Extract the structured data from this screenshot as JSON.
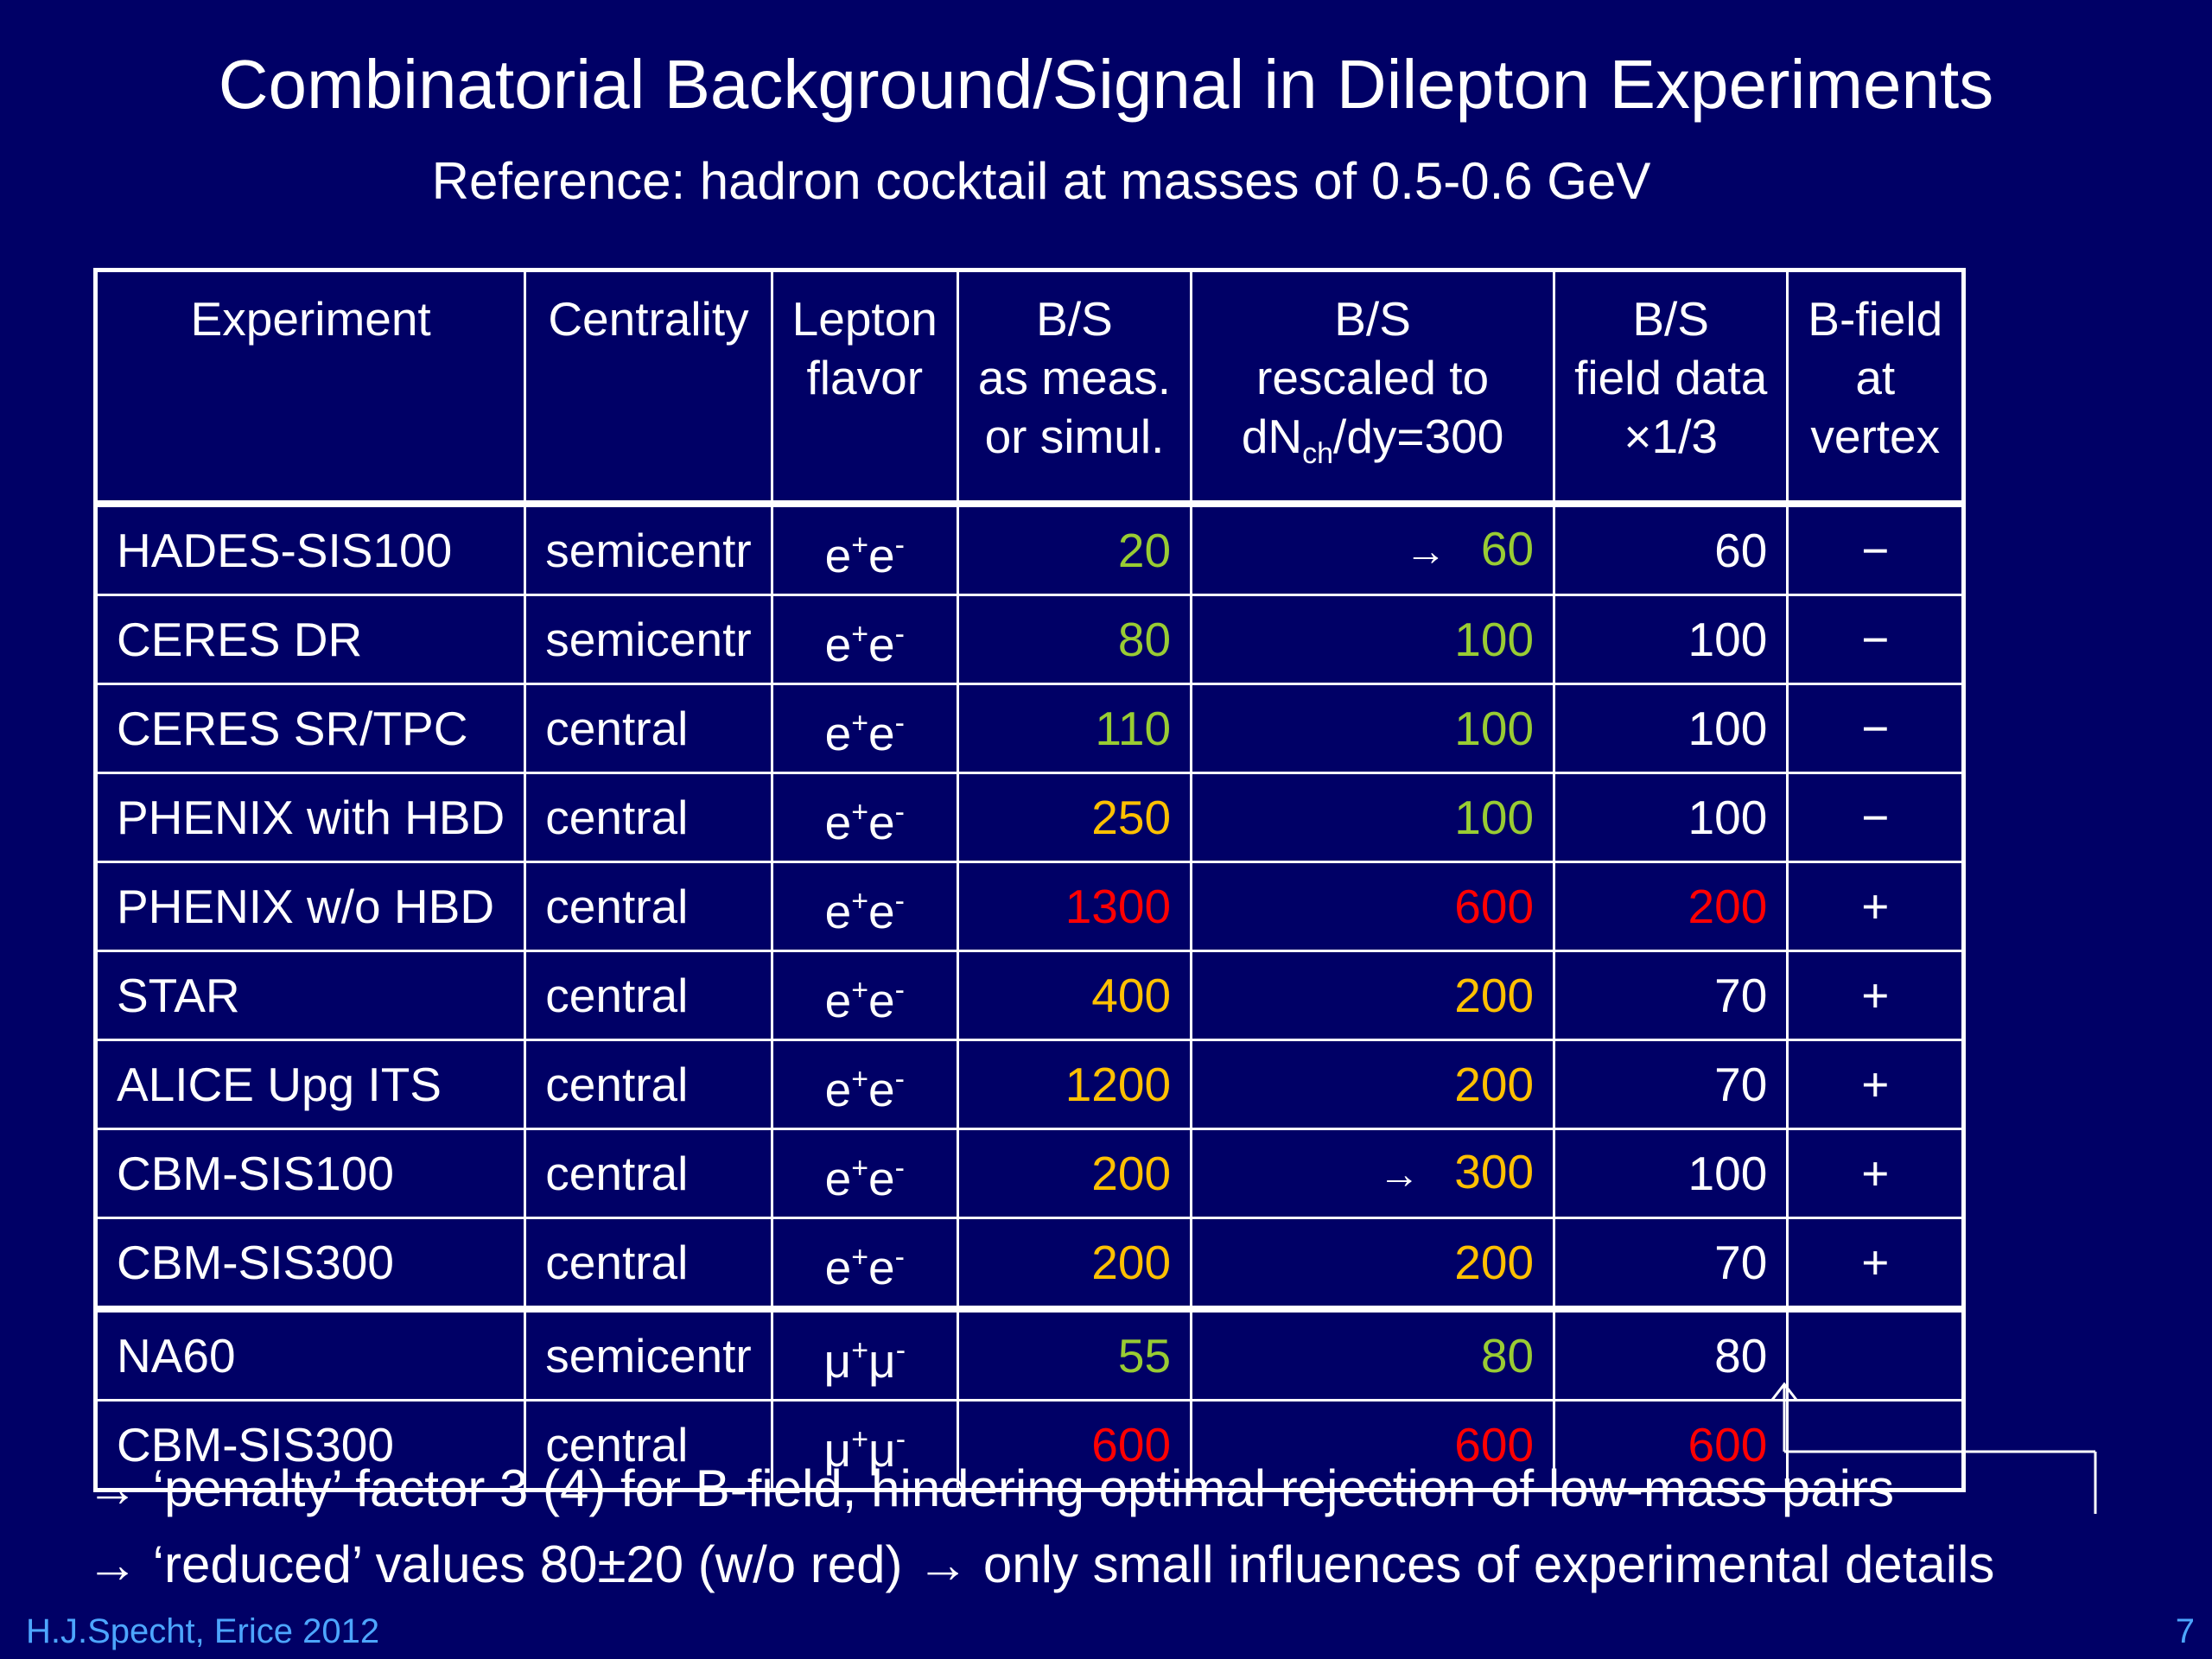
{
  "title": "Combinatorial Background/Signal in Dilepton Experiments",
  "subtitle": "Reference: hadron cocktail at masses of 0.5-0.6 GeV",
  "table": {
    "headers": {
      "experiment": "Experiment",
      "centrality": "Centrality",
      "lepton": [
        "Lepton",
        "flavor"
      ],
      "bs_meas": [
        "B/S",
        "as meas.",
        "or simul."
      ],
      "bs_rescaled": [
        "B/S",
        "rescaled  to",
        "dN",
        "ch",
        "/dy=300"
      ],
      "bs_field": [
        "B/S",
        "field data",
        "×1/3"
      ],
      "bfield": [
        "B-field",
        "at",
        "vertex"
      ]
    },
    "rows": [
      {
        "experiment": "HADES-SIS100",
        "centrality": "semicentr",
        "lepton": "e",
        "sup": "+",
        "lep2": "e",
        "sup2": "-",
        "bs_meas": "20",
        "bs_meas_color": "#99cc33",
        "arrow": true,
        "bs_rescaled": "60",
        "bs_rescaled_color": "#99cc33",
        "bs_field": "60",
        "bs_field_color": "#ffffff",
        "bfield": "−",
        "sep": false
      },
      {
        "experiment": "CERES DR",
        "centrality": "semicentr",
        "lepton": "e",
        "sup": "+",
        "lep2": "e",
        "sup2": "-",
        "bs_meas": "80",
        "bs_meas_color": "#99cc33",
        "arrow": false,
        "bs_rescaled": "100",
        "bs_rescaled_color": "#99cc33",
        "bs_field": "100",
        "bs_field_color": "#ffffff",
        "bfield": "−",
        "sep": false
      },
      {
        "experiment": "CERES SR/TPC",
        "centrality": "central",
        "lepton": "e",
        "sup": "+",
        "lep2": "e",
        "sup2": "-",
        "bs_meas": "110",
        "bs_meas_color": "#99cc33",
        "arrow": false,
        "bs_rescaled": "100",
        "bs_rescaled_color": "#99cc33",
        "bs_field": "100",
        "bs_field_color": "#ffffff",
        "bfield": "−",
        "sep": false
      },
      {
        "experiment": "PHENIX with HBD",
        "centrality": "central",
        "lepton": "e",
        "sup": "+",
        "lep2": "e",
        "sup2": "-",
        "bs_meas": "250",
        "bs_meas_color": "#ffc000",
        "arrow": false,
        "bs_rescaled": "100",
        "bs_rescaled_color": "#99cc33",
        "bs_field": "100",
        "bs_field_color": "#ffffff",
        "bfield": "−",
        "sep": false
      },
      {
        "experiment": "PHENIX  w/o HBD",
        "centrality": "central",
        "lepton": "e",
        "sup": "+",
        "lep2": "e",
        "sup2": "-",
        "bs_meas": "1300",
        "bs_meas_color": "#ff0000",
        "arrow": false,
        "bs_rescaled": "600",
        "bs_rescaled_color": "#ff0000",
        "bs_field": "200",
        "bs_field_color": "#ff0000",
        "bfield": "+",
        "sep": false
      },
      {
        "experiment": "STAR",
        "centrality": "central",
        "lepton": "e",
        "sup": "+",
        "lep2": "e",
        "sup2": "-",
        "bs_meas": "400",
        "bs_meas_color": "#ffc000",
        "arrow": false,
        "bs_rescaled": "200",
        "bs_rescaled_color": "#ffc000",
        "bs_field": "70",
        "bs_field_color": "#ffffff",
        "bfield": "+",
        "sep": false
      },
      {
        "experiment": "ALICE Upg ITS",
        "centrality": "central",
        "lepton": "e",
        "sup": "+",
        "lep2": "e",
        "sup2": "-",
        "bs_meas": "1200",
        "bs_meas_color": "#ffc000",
        "arrow": false,
        "bs_rescaled": "200",
        "bs_rescaled_color": "#ffc000",
        "bs_field": "70",
        "bs_field_color": "#ffffff",
        "bfield": "+",
        "sep": false
      },
      {
        "experiment": "CBM-SIS100",
        "centrality": "central",
        "lepton": "e",
        "sup": "+",
        "lep2": "e",
        "sup2": "-",
        "bs_meas": "200",
        "bs_meas_color": "#ffc000",
        "arrow": true,
        "bs_rescaled": "300",
        "bs_rescaled_color": "#ffc000",
        "bs_field": "100",
        "bs_field_color": "#ffffff",
        "bfield": "+",
        "sep": false
      },
      {
        "experiment": "CBM-SIS300",
        "centrality": "central",
        "lepton": "e",
        "sup": "+",
        "lep2": "e",
        "sup2": "-",
        "bs_meas": "200",
        "bs_meas_color": "#ffc000",
        "arrow": false,
        "bs_rescaled": "200",
        "bs_rescaled_color": "#ffc000",
        "bs_field": "70",
        "bs_field_color": "#ffffff",
        "bfield": "+",
        "sep": false
      },
      {
        "experiment": "NA60",
        "centrality": "semicentr",
        "lepton": "μ",
        "sup": "+",
        "lep2": "μ",
        "sup2": "-",
        "bs_meas": "55",
        "bs_meas_color": "#99cc33",
        "arrow": false,
        "bs_rescaled": "80",
        "bs_rescaled_color": "#99cc33",
        "bs_field": "80",
        "bs_field_color": "#ffffff",
        "bfield": "",
        "sep": true
      },
      {
        "experiment": "CBM-SIS300",
        "centrality": "central",
        "lepton": "μ",
        "sup": "+",
        "lep2": "μ",
        "sup2": "-",
        "bs_meas": "600",
        "bs_meas_color": "#ff0000",
        "arrow": false,
        "bs_rescaled": "600",
        "bs_rescaled_color": "#ff0000",
        "bs_field": "600",
        "bs_field_color": "#ff0000",
        "bfield": "",
        "sep": false
      }
    ]
  },
  "notes": [
    {
      "arrow": "→",
      "text": " ‘penalty’ factor 3 (4) for B-field, hindering optimal rejection of low-mass pairs"
    },
    {
      "arrow": "→",
      "text": " ‘reduced’ values 80±20 (w/o red) ",
      "arrow2": "→",
      "text2": " only small influences of experimental details"
    }
  ],
  "footer": {
    "author": "H.J.Specht, Erice 2012",
    "page": "7"
  },
  "colors": {
    "background": "#000066",
    "green": "#99cc33",
    "orange": "#ffc000",
    "red": "#ff0000",
    "footer": "#4da6ff"
  },
  "icons": {
    "row_arrow": "right-arrow-icon",
    "connector": "bracket-arrow-icon"
  }
}
